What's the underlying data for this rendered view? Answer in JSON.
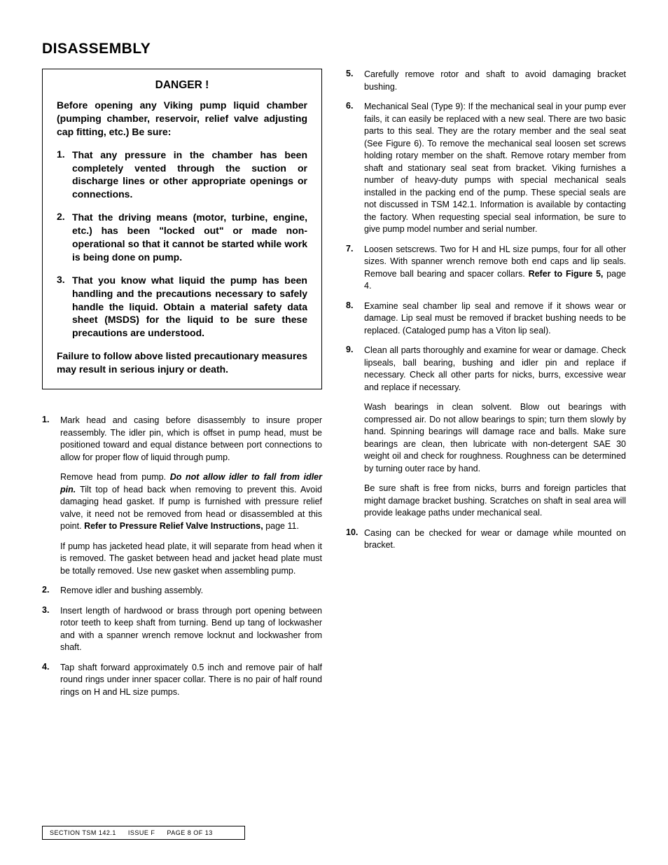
{
  "title": "DISASSEMBLY",
  "danger": {
    "heading": "DANGER !",
    "intro": "Before opening any Viking pump liquid chamber (pumping chamber, reservoir, relief valve adjusting cap fitting, etc.) Be sure:",
    "items": [
      "That any pressure in the chamber has been completely vented through the suction or discharge lines or other appropriate openings or connections.",
      "That the driving means (motor, turbine, engine, etc.) has been \"locked out\" or made non-operational so that it cannot be started while work is being done on pump.",
      "That you know what liquid the pump has been handling and the precautions necessary to safely handle the liquid. Obtain a material safety data sheet (MSDS) for the liquid to be sure these precautions are understood."
    ],
    "footer": "Failure to follow above listed precautionary measures may result in serious injury or death."
  },
  "left_steps": {
    "start": 1,
    "items": [
      {
        "paras": [
          {
            "runs": [
              {
                "t": "Mark head and casing before disassembly to insure proper reassembly. The idler pin, which is offset in pump head, must be positioned toward and equal distance between port connections to allow for proper flow of liquid through pump."
              }
            ]
          },
          {
            "runs": [
              {
                "t": "Remove head from pump. "
              },
              {
                "t": "Do not allow idler to fall from idler pin.",
                "style": "emph"
              },
              {
                "t": " Tilt top of head back when removing to prevent this. Avoid damaging head gasket. If pump is furnished with pressure relief valve, it need not be removed from head or disassembled at this point. "
              },
              {
                "t": "Refer to Pressure Relief Valve Instructions,",
                "style": "strong"
              },
              {
                "t": " page 11."
              }
            ]
          },
          {
            "runs": [
              {
                "t": "If pump has jacketed head plate, it will separate from head when it is removed. The gasket between head and jacket head plate must be totally removed. Use new gasket when assembling pump."
              }
            ]
          }
        ]
      },
      {
        "paras": [
          {
            "runs": [
              {
                "t": "Remove idler and bushing assembly."
              }
            ]
          }
        ]
      },
      {
        "paras": [
          {
            "runs": [
              {
                "t": "Insert length of hardwood or brass through port opening between rotor teeth to keep shaft from turning. Bend up tang of lockwasher and with a spanner wrench remove locknut and lockwasher from shaft."
              }
            ]
          }
        ]
      },
      {
        "paras": [
          {
            "runs": [
              {
                "t": "Tap shaft forward approximately 0.5 inch and remove pair of half round rings under inner spacer collar. There is no pair of half round rings on H and HL size pumps."
              }
            ]
          }
        ]
      }
    ]
  },
  "right_steps": {
    "start": 5,
    "items": [
      {
        "paras": [
          {
            "runs": [
              {
                "t": "Carefully remove rotor and shaft to avoid damaging bracket bushing."
              }
            ]
          }
        ]
      },
      {
        "paras": [
          {
            "runs": [
              {
                "t": "Mechanical Seal (Type 9): If the mechanical seal in your pump ever fails, it can easily be replaced with a new seal. There are two basic parts to this seal. They are the rotary member and the seal seat (See Figure 6). To remove the mechanical seal loosen set screws holding rotary member on the shaft. Remove rotary member from shaft and stationary seal seat from bracket. Viking furnishes a number of heavy-duty pumps with special mechanical seals installed in the packing end of the pump. These special seals are not discussed in TSM 142.1. Information is available by contacting the factory. When requesting special seal information, be sure to give pump model number and serial number."
              }
            ]
          }
        ]
      },
      {
        "paras": [
          {
            "runs": [
              {
                "t": "Loosen setscrews. Two for H and HL size pumps, four for all other sizes. With spanner wrench remove both end caps and lip seals. Remove ball bearing and spacer collars. "
              },
              {
                "t": "Refer to Figure 5,",
                "style": "strong"
              },
              {
                "t": " page 4."
              }
            ]
          }
        ]
      },
      {
        "paras": [
          {
            "runs": [
              {
                "t": "Examine seal chamber lip seal and remove if it shows wear or damage. Lip seal must be removed if bracket bushing needs to be replaced. (Cataloged pump has a Viton lip seal)."
              }
            ]
          }
        ]
      },
      {
        "paras": [
          {
            "runs": [
              {
                "t": "Clean all parts thoroughly and examine for wear or damage. Check lipseals, ball bearing, bushing and idler pin and replace if necessary. Check all other parts for nicks, burrs, excessive wear and replace if necessary."
              }
            ]
          },
          {
            "runs": [
              {
                "t": "Wash bearings in clean solvent. Blow out bearings with compressed air. Do not allow bearings to spin; turn them slowly by hand. Spinning bearings will damage race and balls. Make sure bearings are clean, then lubricate with non-detergent SAE 30 weight oil and check for roughness. Roughness can be determined by turning outer race by hand."
              }
            ]
          },
          {
            "runs": [
              {
                "t": "Be sure shaft is free from nicks, burrs and foreign particles that might damage bracket bushing. Scratches on shaft in seal area will provide leakage paths under mechanical seal."
              }
            ]
          }
        ]
      },
      {
        "paras": [
          {
            "runs": [
              {
                "t": "Casing can be checked for wear or damage while mounted on bracket."
              }
            ]
          }
        ]
      }
    ]
  },
  "footer": {
    "section": "SECTION  TSM  142.1",
    "issue": "ISSUE     F",
    "page": "PAGE  8  OF  13"
  }
}
